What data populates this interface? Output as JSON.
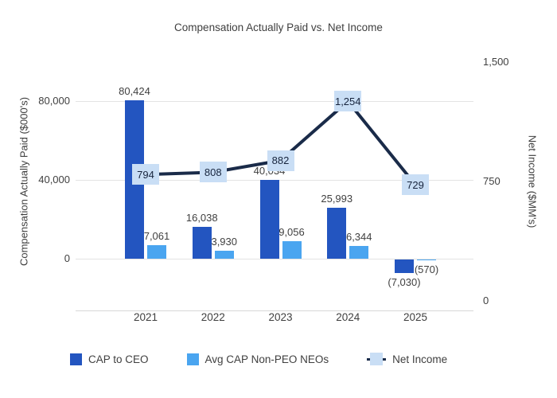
{
  "chart_data": {
    "type": "combo",
    "title": "Compensation Actually Paid vs. Net Income",
    "categories": [
      "2021",
      "2022",
      "2023",
      "2024",
      "2025"
    ],
    "series": [
      {
        "name": "CAP to CEO",
        "type": "bar",
        "axis": "left",
        "color": "#2355c0",
        "values": [
          80424,
          16038,
          40034,
          25993,
          -7030
        ],
        "labels": [
          "80,424",
          "16,038",
          "40,034",
          "25,993",
          "(7,030)"
        ]
      },
      {
        "name": "Avg CAP Non-PEO NEOs",
        "type": "bar",
        "axis": "left",
        "color": "#4aa5f0",
        "values": [
          7061,
          3930,
          9056,
          6344,
          -570
        ],
        "labels": [
          "7,061",
          "3,930",
          "9,056",
          "6,344",
          "(570)"
        ]
      },
      {
        "name": "Net Income",
        "type": "line",
        "axis": "right",
        "color": "#1a2b49",
        "marker_color": "#c9def5",
        "values": [
          794,
          808,
          882,
          1254,
          729
        ],
        "labels": [
          "794",
          "808",
          "882",
          "1,254",
          "729"
        ]
      }
    ],
    "left_axis": {
      "title": "Compensation Actually Paid ($000's)",
      "ticks": [
        "80,000",
        "40,000",
        "0"
      ],
      "tick_values": [
        80000,
        40000,
        0
      ],
      "range": [
        -10000,
        90000
      ]
    },
    "right_axis": {
      "title": "Net Income ($MM's)",
      "ticks": [
        "1,500",
        "750",
        "0"
      ],
      "tick_values": [
        1500,
        750,
        0
      ],
      "range": [
        0,
        1500
      ]
    },
    "grid": "horizontal",
    "legend_position": "bottom",
    "background": "#ffffff"
  }
}
